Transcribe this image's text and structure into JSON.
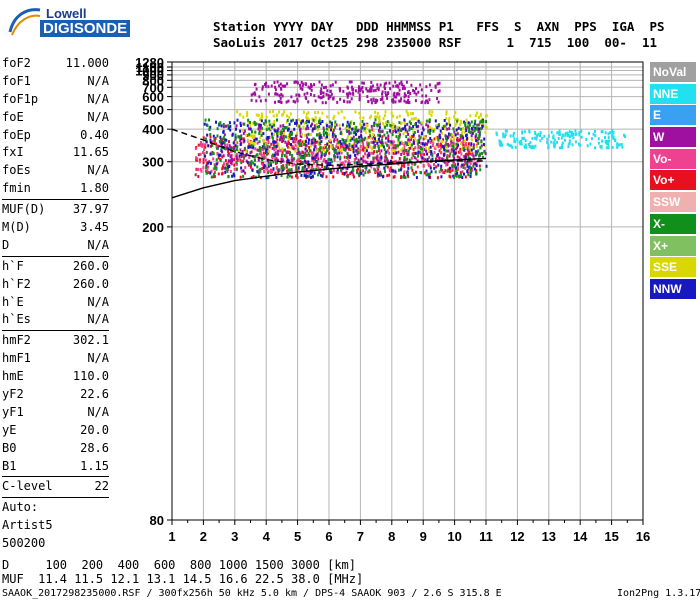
{
  "logo": {
    "line1": "Lowell",
    "line2": "DIGISONDE"
  },
  "header": {
    "labels": "Station YYYY DAY   DDD HHMMSS P1   FFS  S  AXN  PPS  IGA  PS",
    "values": "SaoLuis 2017 Oct25 298 235000 RSF      1  715  100  00-  11"
  },
  "params": [
    {
      "name": "foF2",
      "value": "11.000"
    },
    {
      "name": "foF1",
      "value": "N/A"
    },
    {
      "name": "foF1p",
      "value": "N/A"
    },
    {
      "name": "foE",
      "value": "N/A"
    },
    {
      "name": "foEp",
      "value": "0.40"
    },
    {
      "name": "fxI",
      "value": "11.65"
    },
    {
      "name": "foEs",
      "value": "N/A"
    },
    {
      "name": "fmin",
      "value": "1.80"
    },
    {
      "sep": true
    },
    {
      "name": "MUF(D)",
      "value": "37.97"
    },
    {
      "name": "M(D)",
      "value": "3.45"
    },
    {
      "name": "D",
      "value": "N/A"
    },
    {
      "sep": true
    },
    {
      "name": "h`F",
      "value": "260.0"
    },
    {
      "name": "h`F2",
      "value": "260.0"
    },
    {
      "name": "h`E",
      "value": "N/A"
    },
    {
      "name": "h`Es",
      "value": "N/A"
    },
    {
      "sep": true
    },
    {
      "name": "hmF2",
      "value": "302.1"
    },
    {
      "name": "hmF1",
      "value": "N/A"
    },
    {
      "name": "hmE",
      "value": "110.0"
    },
    {
      "name": "yF2",
      "value": "22.6"
    },
    {
      "name": "yF1",
      "value": "N/A"
    },
    {
      "name": "yE",
      "value": "20.0"
    },
    {
      "name": "B0",
      "value": "28.6"
    },
    {
      "name": "B1",
      "value": "1.15"
    },
    {
      "sep": true
    },
    {
      "name": "C-level",
      "value": "22"
    },
    {
      "sep": true
    },
    {
      "name": "Auto:",
      "value": ""
    },
    {
      "name": "Artist5",
      "value": ""
    },
    {
      "name": "500200",
      "value": ""
    }
  ],
  "legend": [
    {
      "label": "NoVal",
      "color": "#a0a0a0"
    },
    {
      "label": "NNE",
      "color": "#22e0f0"
    },
    {
      "label": "E",
      "color": "#3aa0f0"
    },
    {
      "label": "W",
      "color": "#a010a0"
    },
    {
      "label": "Vo-",
      "color": "#f04090"
    },
    {
      "label": "Vo+",
      "color": "#e81020"
    },
    {
      "label": "SSW",
      "color": "#f0b0b0"
    },
    {
      "label": "X-",
      "color": "#10901a"
    },
    {
      "label": "X+",
      "color": "#80c060"
    },
    {
      "label": "SSE",
      "color": "#d8d800"
    },
    {
      "label": "NNW",
      "color": "#1818c0"
    }
  ],
  "footer": {
    "d_row": "D     100  200  400  600  800 1000 1500 3000 [km]",
    "muf_row": "MUF  11.4 11.5 12.1 13.1 14.5 16.6 22.5 38.0 [MHz]",
    "info": "SAAOK_2017298235000.RSF / 300fx256h 50 kHz 5.0 km / DPS-4 SAAOK 903 / 2.6 S 315.8 E",
    "version": "Ion2Png 1.3.17"
  },
  "chart_data": {
    "type": "scatter",
    "title": "",
    "xlabel": "",
    "ylabel": "",
    "xlim": [
      1,
      16
    ],
    "ylim": [
      80,
      1280
    ],
    "y_scale": "reciprocal",
    "x_ticks": [
      1,
      2,
      3,
      4,
      5,
      6,
      7,
      8,
      9,
      10,
      11,
      12,
      13,
      14,
      15,
      16
    ],
    "y_ticks": [
      80,
      200,
      300,
      400,
      500,
      600,
      700,
      800,
      900,
      1000,
      1100,
      1280
    ],
    "grid": true,
    "traces": [
      {
        "name": "profile_lower",
        "style": "solid",
        "color": "#000000",
        "x": [
          1.0,
          2.0,
          3.0,
          4.0,
          5.0,
          6.0,
          7.0,
          8.0,
          9.0,
          10.0,
          11.0
        ],
        "y": [
          235,
          250,
          262,
          270,
          278,
          284,
          290,
          295,
          300,
          304,
          308
        ]
      },
      {
        "name": "profile_upper",
        "style": "dashed",
        "color": "#000000",
        "x": [
          1.0,
          2.0,
          3.0,
          4.0,
          5.0,
          6.0,
          7.0,
          8.0,
          9.0,
          10.0,
          11.0
        ],
        "y": [
          400,
          360,
          325,
          305,
          295,
          292,
          294,
          298,
          300,
          302,
          302
        ]
      }
    ],
    "echo_regions": [
      {
        "x": [
          1.7,
          10.8
        ],
        "y": [
          270,
          380
        ],
        "legend": "Vo+"
      },
      {
        "x": [
          1.7,
          10.8
        ],
        "y": [
          280,
          360
        ],
        "legend": "Vo-"
      },
      {
        "x": [
          2.5,
          11.0
        ],
        "y": [
          300,
          430
        ],
        "legend": "W"
      },
      {
        "x": [
          3.0,
          11.0
        ],
        "y": [
          330,
          500
        ],
        "legend": "SSE"
      },
      {
        "x": [
          11.3,
          15.4
        ],
        "y": [
          340,
          400
        ],
        "legend": "NNE"
      },
      {
        "x": [
          3.5,
          9.5
        ],
        "y": [
          560,
          800
        ],
        "legend": "W"
      },
      {
        "x": [
          2.0,
          11.0
        ],
        "y": [
          270,
          450
        ],
        "legend": "NNW"
      },
      {
        "x": [
          2.0,
          11.0
        ],
        "y": [
          270,
          450
        ],
        "legend": "X-"
      }
    ]
  }
}
